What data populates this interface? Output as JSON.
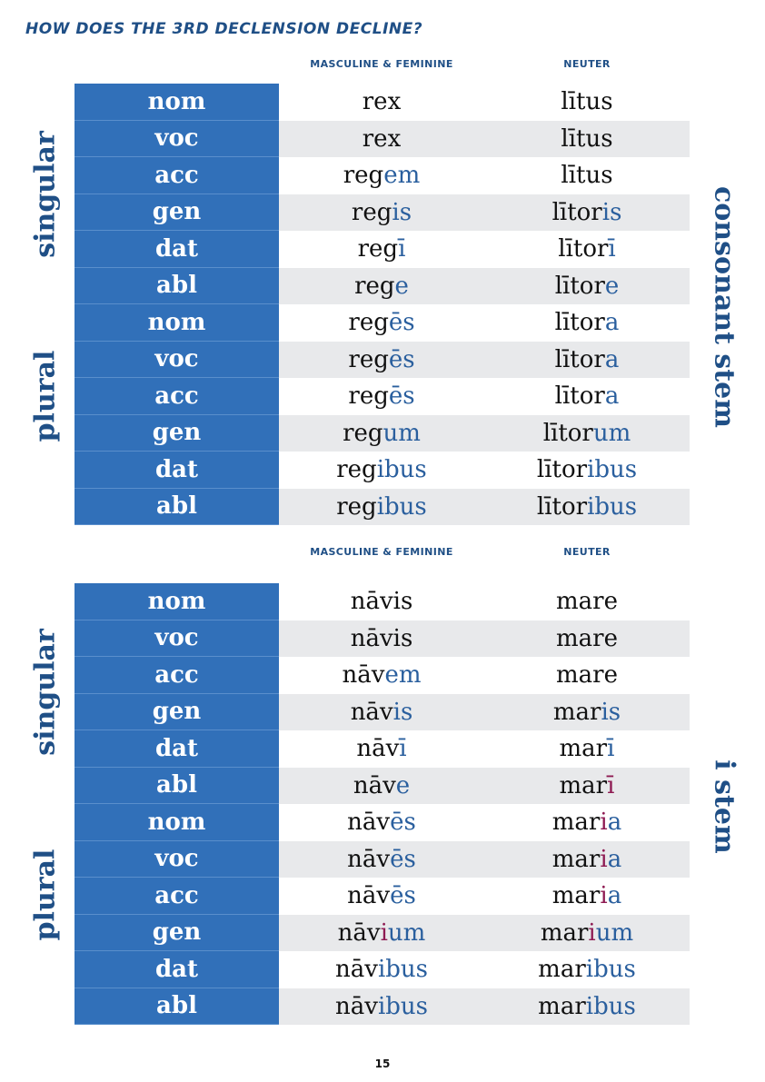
{
  "title": "How does the 3rd declension decline?",
  "page_number": "15",
  "tables": [
    {
      "col_masc_fem": "Masculine & Feminine",
      "col_neuter": "Neuter",
      "singular_label": "singular",
      "plural_label": "plural",
      "stem_label": "consonant stem",
      "rows": [
        {
          "case": "nom",
          "mf": [
            [
              "rex",
              ""
            ]
          ],
          "n": [
            [
              "lītus",
              ""
            ]
          ]
        },
        {
          "case": "voc",
          "mf": [
            [
              "rex",
              ""
            ]
          ],
          "n": [
            [
              "lītus",
              ""
            ]
          ]
        },
        {
          "case": "acc",
          "mf": [
            [
              "reg",
              ""
            ],
            [
              "em",
              "e"
            ]
          ],
          "n": [
            [
              "lītus",
              ""
            ]
          ]
        },
        {
          "case": "gen",
          "mf": [
            [
              "reg",
              ""
            ],
            [
              "is",
              "e"
            ]
          ],
          "n": [
            [
              "lītor",
              ""
            ],
            [
              "is",
              "e"
            ]
          ]
        },
        {
          "case": "dat",
          "mf": [
            [
              "reg",
              ""
            ],
            [
              "ī",
              "e"
            ]
          ],
          "n": [
            [
              "lītor",
              ""
            ],
            [
              "ī",
              "e"
            ]
          ]
        },
        {
          "case": "abl",
          "mf": [
            [
              "reg",
              ""
            ],
            [
              "e",
              "e"
            ]
          ],
          "n": [
            [
              "lītor",
              ""
            ],
            [
              "e",
              "e"
            ]
          ]
        },
        {
          "case": "nom",
          "mf": [
            [
              "reg",
              ""
            ],
            [
              "ēs",
              "e"
            ]
          ],
          "n": [
            [
              "lītor",
              ""
            ],
            [
              "a",
              "e"
            ]
          ]
        },
        {
          "case": "voc",
          "mf": [
            [
              "reg",
              ""
            ],
            [
              "ēs",
              "e"
            ]
          ],
          "n": [
            [
              "lītor",
              ""
            ],
            [
              "a",
              "e"
            ]
          ]
        },
        {
          "case": "acc",
          "mf": [
            [
              "reg",
              ""
            ],
            [
              "ēs",
              "e"
            ]
          ],
          "n": [
            [
              "lītor",
              ""
            ],
            [
              "a",
              "e"
            ]
          ]
        },
        {
          "case": "gen",
          "mf": [
            [
              "reg",
              ""
            ],
            [
              "um",
              "e"
            ]
          ],
          "n": [
            [
              "lītor",
              ""
            ],
            [
              "um",
              "e"
            ]
          ]
        },
        {
          "case": "dat",
          "mf": [
            [
              "reg",
              ""
            ],
            [
              "ibus",
              "e"
            ]
          ],
          "n": [
            [
              "lītor",
              ""
            ],
            [
              "ibus",
              "e"
            ]
          ]
        },
        {
          "case": "abl",
          "mf": [
            [
              "reg",
              ""
            ],
            [
              "ibus",
              "e"
            ]
          ],
          "n": [
            [
              "lītor",
              ""
            ],
            [
              "ibus",
              "e"
            ]
          ]
        }
      ]
    },
    {
      "col_masc_fem": "Masculine & Feminine",
      "col_neuter": "Neuter",
      "singular_label": "singular",
      "plural_label": "plural",
      "stem_label": "i stem",
      "rows": [
        {
          "case": "nom",
          "mf": [
            [
              "nāvis",
              ""
            ]
          ],
          "n": [
            [
              "mare",
              ""
            ]
          ]
        },
        {
          "case": "voc",
          "mf": [
            [
              "nāvis",
              ""
            ]
          ],
          "n": [
            [
              "mare",
              ""
            ]
          ]
        },
        {
          "case": "acc",
          "mf": [
            [
              "nāv",
              ""
            ],
            [
              "em",
              "e"
            ]
          ],
          "n": [
            [
              "mare",
              ""
            ]
          ]
        },
        {
          "case": "gen",
          "mf": [
            [
              "nāv",
              ""
            ],
            [
              "is",
              "e"
            ]
          ],
          "n": [
            [
              "mar",
              ""
            ],
            [
              "is",
              "e"
            ]
          ]
        },
        {
          "case": "dat",
          "mf": [
            [
              "nāv",
              ""
            ],
            [
              "ī",
              "e"
            ]
          ],
          "n": [
            [
              "mar",
              ""
            ],
            [
              "ī",
              "e"
            ]
          ]
        },
        {
          "case": "abl",
          "mf": [
            [
              "nāv",
              ""
            ],
            [
              "e",
              "e"
            ]
          ],
          "n": [
            [
              "mar",
              ""
            ],
            [
              "ī",
              "p"
            ]
          ]
        },
        {
          "case": "nom",
          "mf": [
            [
              "nāv",
              ""
            ],
            [
              "ēs",
              "e"
            ]
          ],
          "n": [
            [
              "mar",
              ""
            ],
            [
              "i",
              "p"
            ],
            [
              "a",
              "e"
            ]
          ]
        },
        {
          "case": "voc",
          "mf": [
            [
              "nāv",
              ""
            ],
            [
              "ēs",
              "e"
            ]
          ],
          "n": [
            [
              "mar",
              ""
            ],
            [
              "i",
              "p"
            ],
            [
              "a",
              "e"
            ]
          ]
        },
        {
          "case": "acc",
          "mf": [
            [
              "nāv",
              ""
            ],
            [
              "ēs",
              "e"
            ]
          ],
          "n": [
            [
              "mar",
              ""
            ],
            [
              "i",
              "p"
            ],
            [
              "a",
              "e"
            ]
          ]
        },
        {
          "case": "gen",
          "mf": [
            [
              "nāv",
              ""
            ],
            [
              "i",
              "p"
            ],
            [
              "um",
              "e"
            ]
          ],
          "n": [
            [
              "mar",
              ""
            ],
            [
              "i",
              "p"
            ],
            [
              "um",
              "e"
            ]
          ]
        },
        {
          "case": "dat",
          "mf": [
            [
              "nāv",
              ""
            ],
            [
              "ibus",
              "e"
            ]
          ],
          "n": [
            [
              "mar",
              ""
            ],
            [
              "ibus",
              "e"
            ]
          ]
        },
        {
          "case": "abl",
          "mf": [
            [
              "nāv",
              ""
            ],
            [
              "ibus",
              "e"
            ]
          ],
          "n": [
            [
              "mar",
              ""
            ],
            [
              "ibus",
              "e"
            ]
          ]
        }
      ]
    }
  ],
  "colors": {
    "case_bg": "#3170b9",
    "ending": "#2a5f9e",
    "i_stem_marker": "#8e1a52",
    "heading": "#1f4f86",
    "alt_row": "#e8e9eb"
  }
}
